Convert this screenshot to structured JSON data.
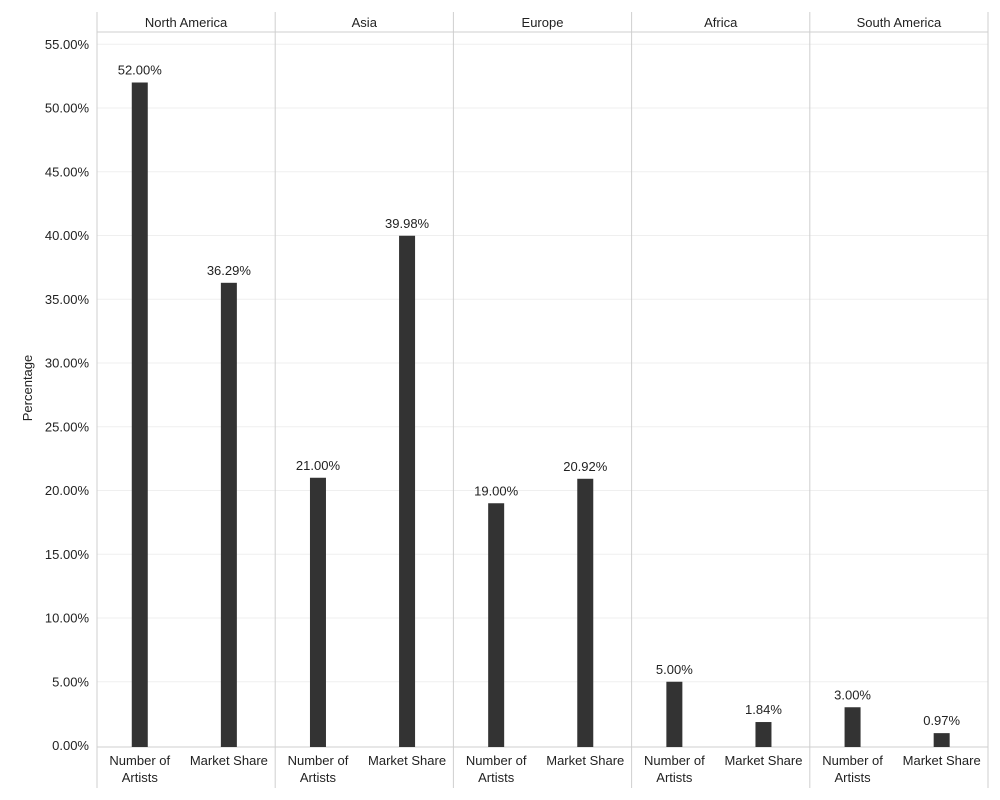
{
  "chart_data": {
    "type": "bar",
    "ylabel": "Percentage",
    "ylim": [
      0,
      56
    ],
    "yticks": [
      "0.00%",
      "5.00%",
      "10.00%",
      "15.00%",
      "20.00%",
      "25.00%",
      "30.00%",
      "35.00%",
      "40.00%",
      "45.00%",
      "50.00%",
      "55.00%"
    ],
    "grid": true,
    "categories": [
      "Number of Artists",
      "Market Share"
    ],
    "panels": [
      {
        "name": "North America",
        "values": [
          52.0,
          36.29
        ],
        "labels": [
          "52.00%",
          "36.29%"
        ]
      },
      {
        "name": "Asia",
        "values": [
          21.0,
          39.98
        ],
        "labels": [
          "21.00%",
          "39.98%"
        ]
      },
      {
        "name": "Europe",
        "values": [
          19.0,
          20.92
        ],
        "labels": [
          "19.00%",
          "20.92%"
        ]
      },
      {
        "name": "Africa",
        "values": [
          5.0,
          1.84
        ],
        "labels": [
          "5.00%",
          "1.84%"
        ]
      },
      {
        "name": "South America",
        "values": [
          3.0,
          0.97
        ],
        "labels": [
          "3.00%",
          "0.97%"
        ]
      }
    ],
    "colors": {
      "bar": "#333333",
      "grid": "#efefef",
      "divider": "#cfcfcf"
    }
  }
}
